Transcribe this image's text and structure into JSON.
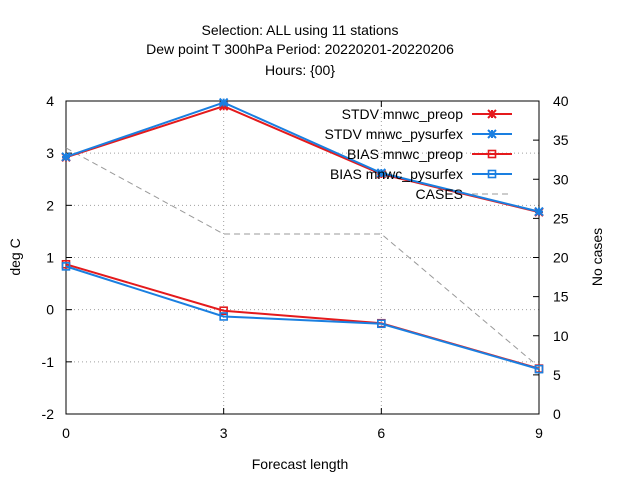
{
  "chart_data": {
    "type": "line",
    "title_lines": [
      "Selection: ALL using    11 stations",
      "Dew point T 300hPa   Period: 20220201-20220206",
      "Hours: {00}"
    ],
    "xlabel": "Forecast length",
    "ylabel": "deg C",
    "y2label": "No cases",
    "x_ticks": [
      "0",
      "3",
      "6",
      "9"
    ],
    "y_ticks": [
      "-2",
      "-1",
      "0",
      "1",
      "2",
      "3",
      "4"
    ],
    "y2_ticks": [
      "0",
      "5",
      "10",
      "15",
      "20",
      "25",
      "30",
      "35",
      "40"
    ],
    "xlim": [
      0,
      9
    ],
    "ylim": [
      -2,
      4
    ],
    "y2lim": [
      0,
      40
    ],
    "grid": true,
    "legend_position": "top-right",
    "x": [
      0,
      3,
      6,
      9
    ],
    "series": [
      {
        "name": "STDV mnwc_preop",
        "axis": "y",
        "color": "#e41a1c",
        "marker": "star",
        "style": "solid",
        "values": [
          2.92,
          3.9,
          2.6,
          1.87
        ]
      },
      {
        "name": "STDV mnwc_pysurfex",
        "axis": "y",
        "color": "#1a7fe0",
        "marker": "star",
        "style": "solid",
        "values": [
          2.93,
          3.97,
          2.62,
          1.88
        ]
      },
      {
        "name": "BIAS mnwc_preop",
        "axis": "y",
        "color": "#e41a1c",
        "marker": "square",
        "style": "solid",
        "values": [
          0.87,
          -0.02,
          -0.26,
          -1.13
        ]
      },
      {
        "name": "BIAS mnwc_pysurfex",
        "axis": "y",
        "color": "#1a7fe0",
        "marker": "square",
        "style": "solid",
        "values": [
          0.83,
          -0.13,
          -0.27,
          -1.14
        ]
      },
      {
        "name": "CASES",
        "axis": "y2",
        "color": "#999999",
        "marker": "none",
        "style": "dashed",
        "values": [
          34,
          23,
          23,
          6
        ]
      }
    ]
  }
}
